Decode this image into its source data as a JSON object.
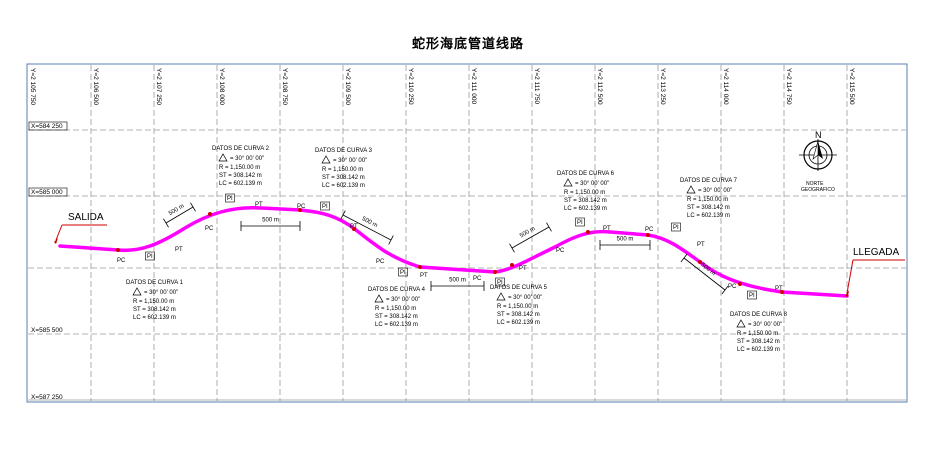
{
  "title": "蛇形海底管道线路",
  "grid": {
    "y_labels": [
      "Y=2 105 750",
      "Y=2 106 500",
      "Y=2 107 250",
      "Y=2 108 000",
      "Y=2 108 750",
      "Y=2 109 500",
      "Y=2 110 250",
      "Y=2 111 000",
      "Y=2 111 750",
      "Y=2 112 500",
      "Y=2 113 250",
      "Y=2 114 000",
      "Y=2 114 750",
      "Y=2 115 500"
    ],
    "x_labels": [
      "X=584 250",
      "X=585 000",
      "X=585 500",
      "X=587 250"
    ]
  },
  "labels": {
    "start": "SALIDA",
    "end": "LLEGADA",
    "north_letter": "N",
    "north_line1": "NORTE",
    "north_line2": "GEOGRAFICO"
  },
  "point_labels": {
    "pc": "PC",
    "pt": "PT",
    "pi": "PI"
  },
  "dimension": "500 m",
  "curves": [
    {
      "title": "DATOS DE CURVA 1",
      "delta": "= 30° 00' 00\"",
      "r": "R  = 1,150.00  m",
      "st": "ST  = 308.142  m",
      "lc": "LC  = 602.139  m"
    },
    {
      "title": "DATOS DE CURVA 2",
      "delta": "= 30° 00' 00\"",
      "r": "R  = 1,150.00  m",
      "st": "ST  = 308.142  m",
      "lc": "LC  = 602.139  m"
    },
    {
      "title": "DATOS DE CURVA 3",
      "delta": "= 30° 00' 00\"",
      "r": "R  = 1,150.00  m",
      "st": "ST  = 308.142  m",
      "lc": "LC  = 602.139  m"
    },
    {
      "title": "DATOS DE CURVA 4",
      "delta": "= 30° 00' 00\"",
      "r": "R  = 1,150.00  m",
      "st": "ST  = 308.142  m",
      "lc": "LC  = 602.139  m"
    },
    {
      "title": "DATOS DE CURVA 5",
      "delta": "= 30° 00' 00\"",
      "r": "R  = 1,150.00  m",
      "st": "ST  = 308.142  m",
      "lc": "LC  = 602.139  m"
    },
    {
      "title": "DATOS DE CURVA 6",
      "delta": "= 30° 00' 00\"",
      "r": "R  = 1,150.00  m",
      "st": "ST  = 308.142  m",
      "lc": "LC  = 602.139  m"
    },
    {
      "title": "DATOS DE CURVA 7",
      "delta": "= 30° 00' 00\"",
      "r": "R  = 1,150.00  m",
      "st": "ST  = 308.142  m",
      "lc": "LC  = 602.139  m"
    },
    {
      "title": "DATOS DE CURVA 8",
      "delta": "= 30° 00' 00\"",
      "r": "R  = 1,150.00  m",
      "st": "ST  = 308.142  m",
      "lc": "LC  = 602.139  m"
    }
  ],
  "colors": {
    "pipeline": "#ff00ff",
    "grid": "#9a9a9a",
    "marker": "#cc0000",
    "arrow": "#cc0000",
    "frame": "#5a7fb0"
  }
}
